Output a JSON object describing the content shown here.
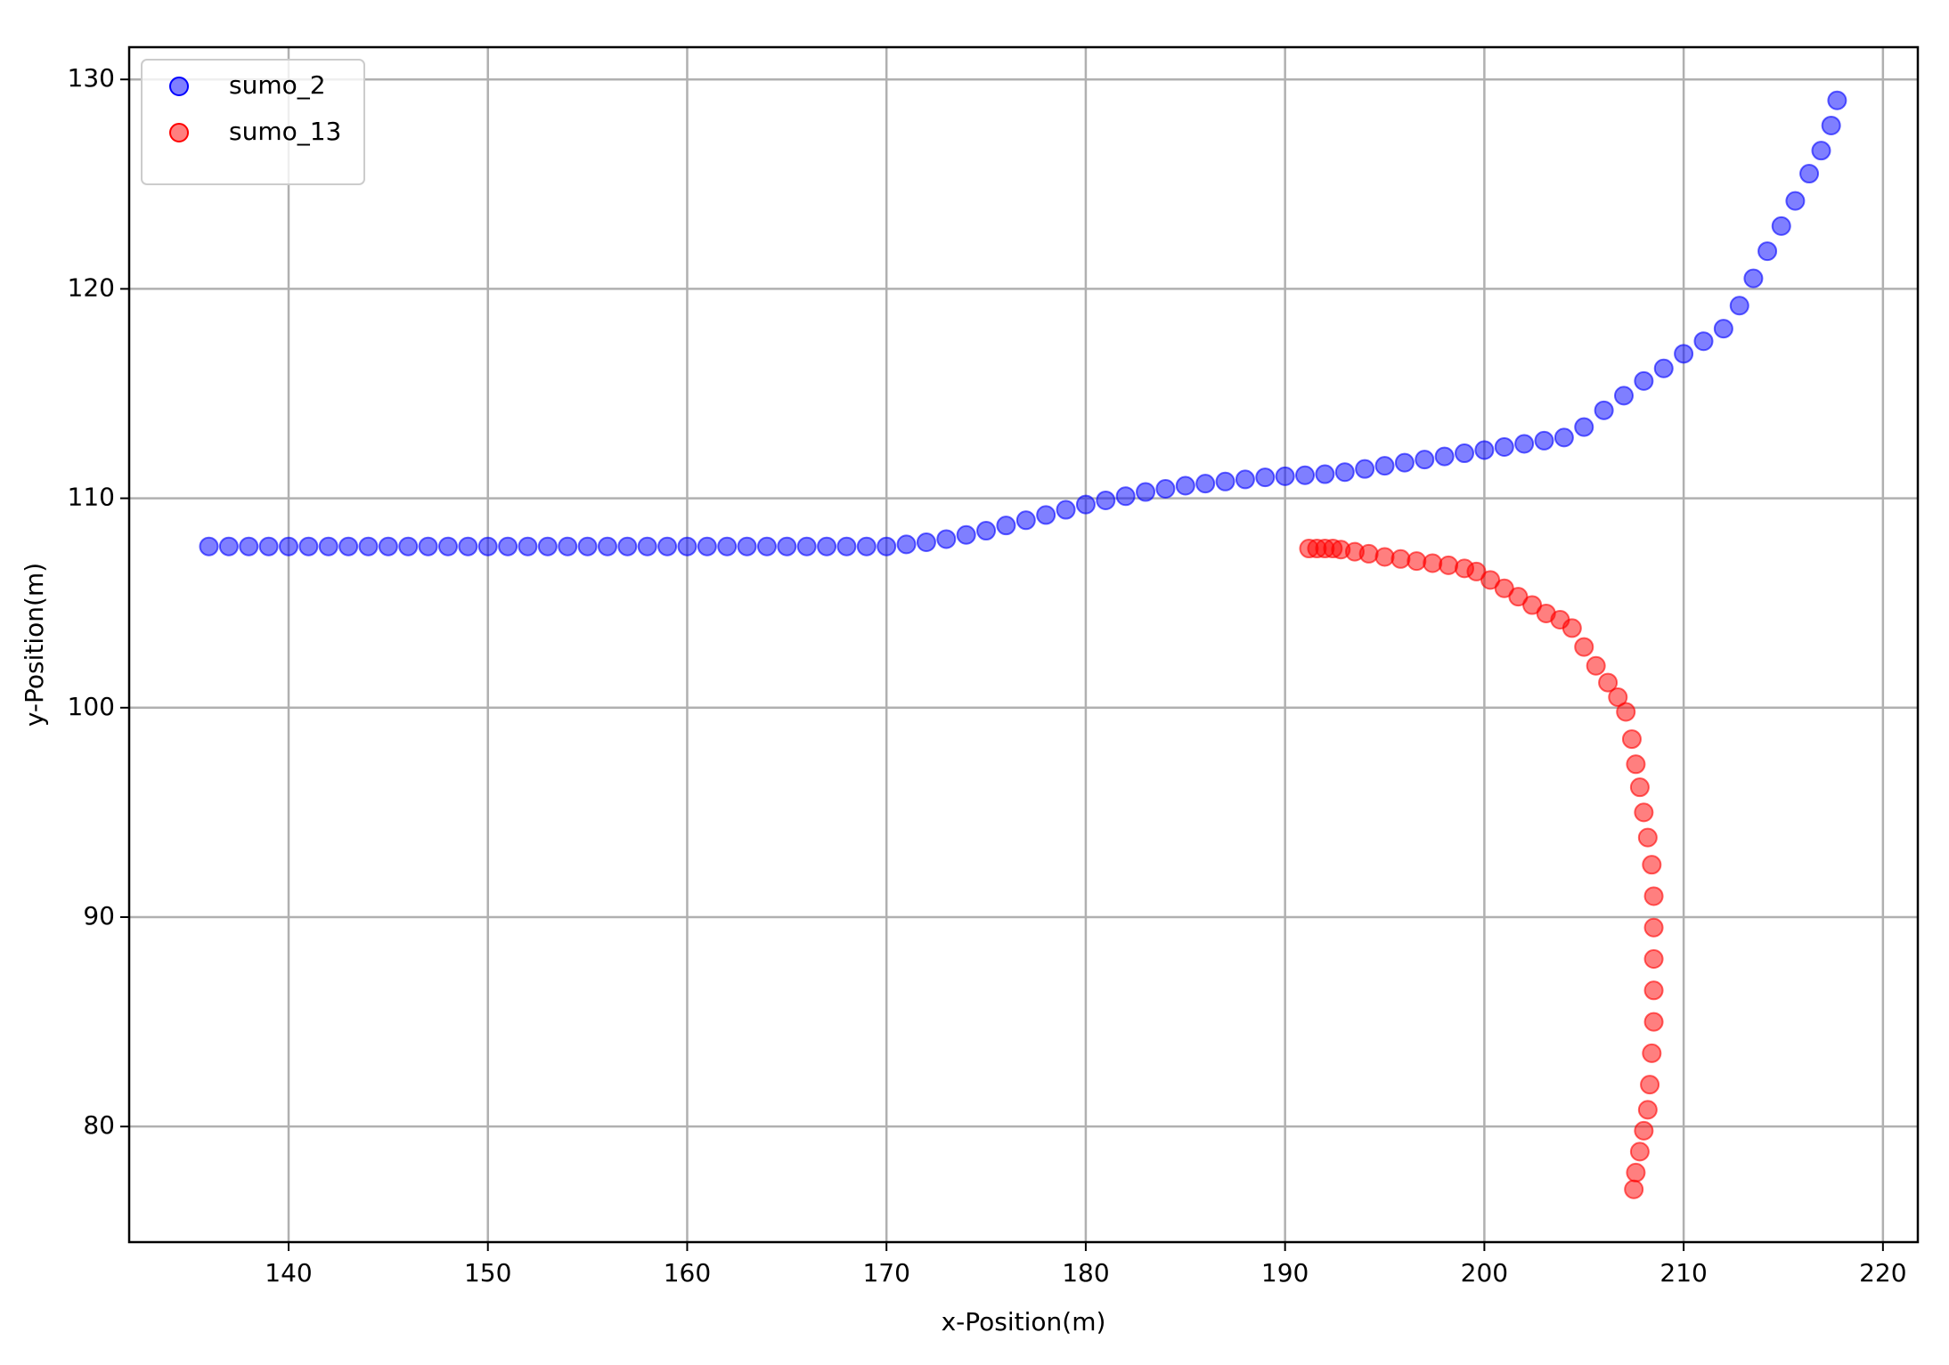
{
  "chart_data": {
    "type": "scatter",
    "xlabel": "x-Position(m)",
    "ylabel": "y-Position(m)",
    "xlim": [
      132.0,
      221.75
    ],
    "ylim": [
      74.48,
      131.54
    ],
    "xticks": [
      140,
      150,
      160,
      170,
      180,
      190,
      200,
      210,
      220
    ],
    "yticks": [
      80,
      90,
      100,
      110,
      120,
      130
    ],
    "grid": true,
    "legend": "upper left",
    "series": [
      {
        "name": "sumo_2",
        "color": "#0000ff",
        "x": [
          136,
          137,
          138,
          139,
          140,
          141,
          142,
          143,
          144,
          145,
          146,
          147,
          148,
          149,
          150,
          151,
          152,
          153,
          154,
          155,
          156,
          157,
          158,
          159,
          160,
          161,
          162,
          163,
          164,
          165,
          166,
          167,
          168,
          169,
          170,
          171,
          172,
          173,
          174,
          175,
          176,
          177,
          178,
          179,
          180,
          181,
          182,
          183,
          184,
          185,
          186,
          187,
          188,
          189,
          190,
          191,
          192,
          193,
          194,
          195,
          196,
          197,
          198,
          199,
          200,
          201,
          202,
          203,
          204,
          205,
          206,
          207,
          208,
          209,
          210,
          211,
          212,
          212.8,
          213.5,
          214.2,
          214.9,
          215.6,
          216.3,
          216.9,
          217.4,
          217.7
        ],
        "values": [
          107.7,
          107.7,
          107.7,
          107.7,
          107.7,
          107.7,
          107.7,
          107.7,
          107.7,
          107.7,
          107.7,
          107.7,
          107.7,
          107.7,
          107.7,
          107.7,
          107.7,
          107.7,
          107.7,
          107.7,
          107.7,
          107.7,
          107.7,
          107.7,
          107.7,
          107.7,
          107.7,
          107.7,
          107.7,
          107.7,
          107.7,
          107.7,
          107.7,
          107.7,
          107.7,
          107.8,
          107.9,
          108.05,
          108.25,
          108.45,
          108.7,
          108.95,
          109.2,
          109.45,
          109.7,
          109.9,
          110.1,
          110.3,
          110.45,
          110.6,
          110.7,
          110.8,
          110.9,
          111.0,
          111.05,
          111.1,
          111.15,
          111.25,
          111.4,
          111.55,
          111.7,
          111.85,
          112.0,
          112.15,
          112.3,
          112.45,
          112.6,
          112.75,
          112.9,
          113.4,
          114.2,
          114.9,
          115.6,
          116.2,
          116.9,
          117.5,
          118.1,
          119.2,
          120.5,
          121.8,
          123.0,
          124.2,
          125.5,
          126.6,
          127.8,
          129.0
        ]
      },
      {
        "name": "sumo_13",
        "color": "#ff0000",
        "x": [
          191.2,
          191.6,
          192.0,
          192.4,
          192.8,
          193.5,
          194.2,
          195.0,
          195.8,
          196.6,
          197.4,
          198.2,
          199.0,
          199.6,
          200.3,
          201.0,
          201.7,
          202.4,
          203.1,
          203.8,
          204.4,
          205.0,
          205.6,
          206.2,
          206.7,
          207.1,
          207.4,
          207.6,
          207.8,
          208.0,
          208.2,
          208.4,
          208.5,
          208.5,
          208.5,
          208.5,
          208.5,
          208.4,
          208.3,
          208.2,
          208.0,
          207.8,
          207.6,
          207.5
        ],
        "values": [
          107.6,
          107.6,
          107.6,
          107.6,
          107.55,
          107.45,
          107.35,
          107.2,
          107.1,
          107.0,
          106.9,
          106.8,
          106.65,
          106.5,
          106.1,
          105.7,
          105.3,
          104.9,
          104.5,
          104.2,
          103.8,
          102.9,
          102.0,
          101.2,
          100.5,
          99.8,
          98.5,
          97.3,
          96.2,
          95.0,
          93.8,
          92.5,
          91.0,
          89.5,
          88.0,
          86.5,
          85.0,
          83.5,
          82.0,
          80.8,
          79.8,
          78.8,
          77.8,
          77.0
        ]
      }
    ]
  }
}
